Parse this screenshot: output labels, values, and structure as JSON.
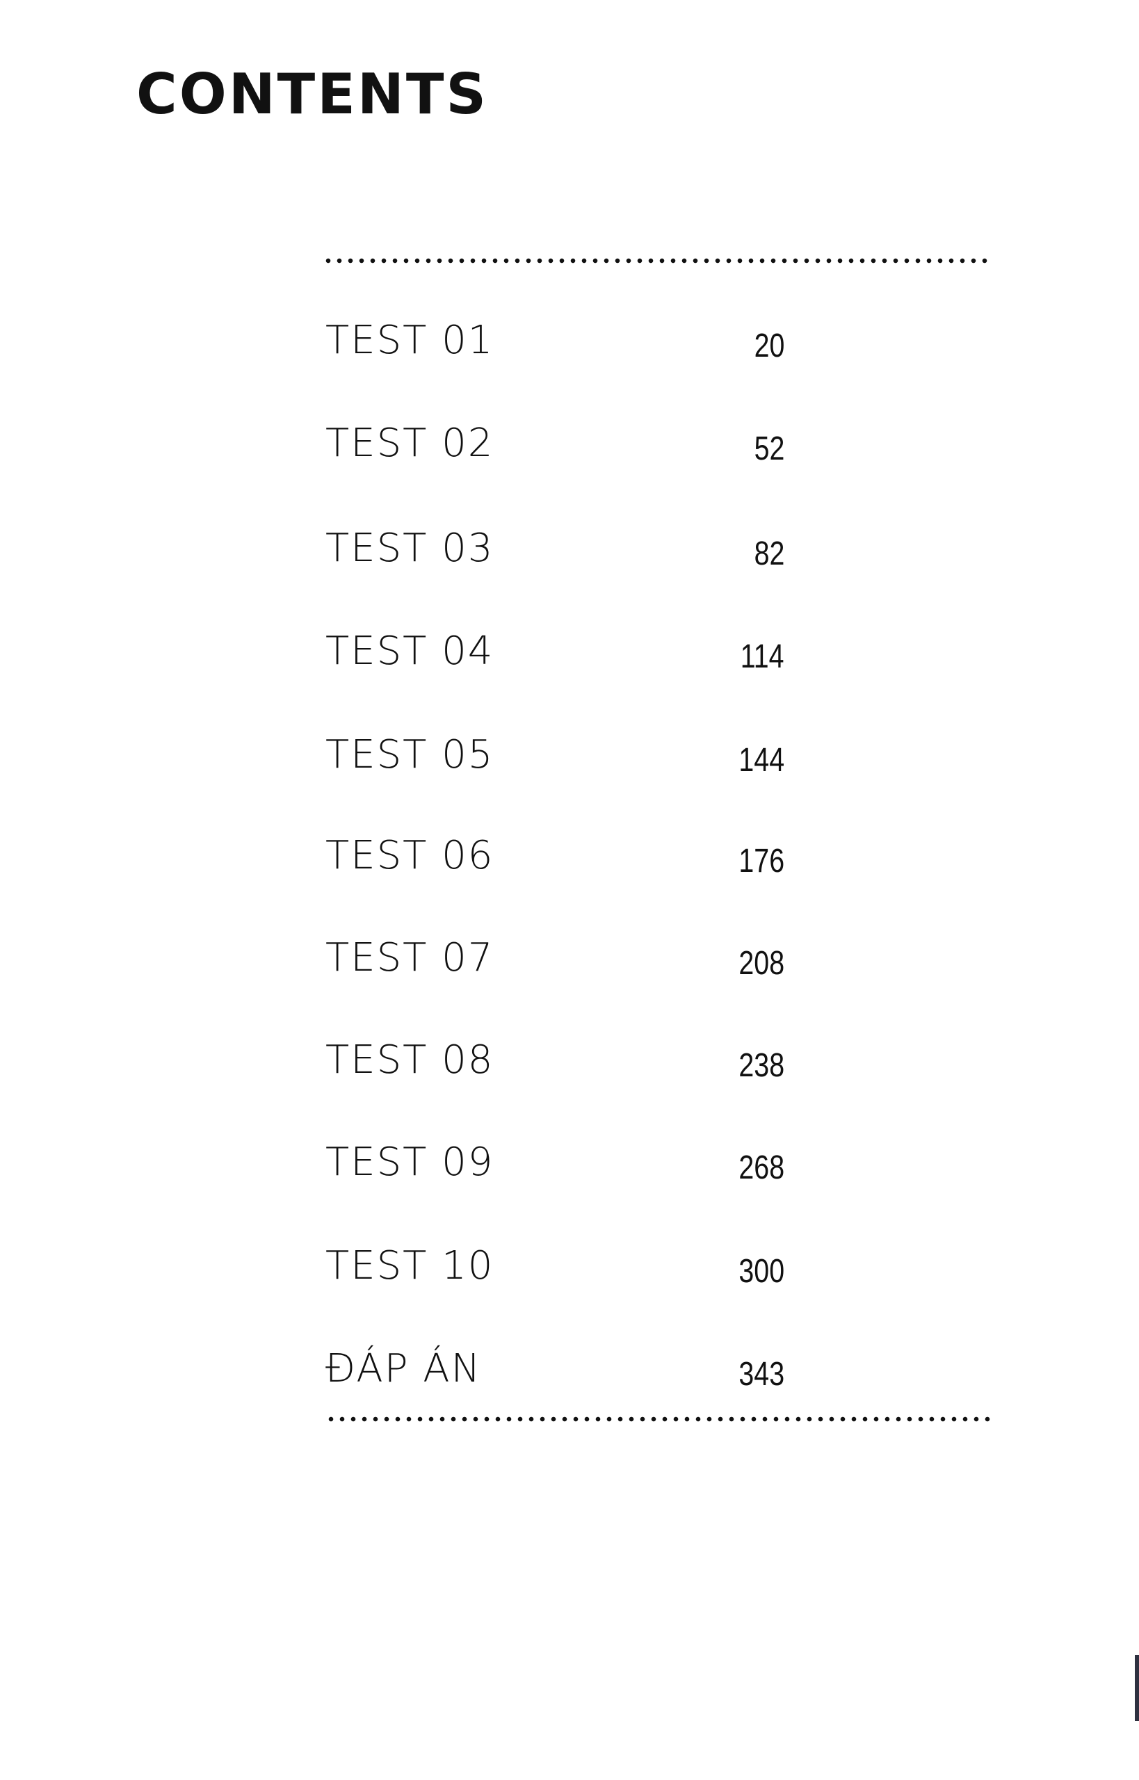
{
  "title": "CONTENTS",
  "entries": [
    {
      "label": "TEST 01",
      "page": "20"
    },
    {
      "label": "TEST 02",
      "page": "52"
    },
    {
      "label": "TEST 03",
      "page": "82"
    },
    {
      "label": "TEST 04",
      "page": "114"
    },
    {
      "label": "TEST 05",
      "page": "144"
    },
    {
      "label": "TEST 06",
      "page": "176"
    },
    {
      "label": "TEST 07",
      "page": "208"
    },
    {
      "label": "TEST 08",
      "page": "238"
    },
    {
      "label": "TEST 09",
      "page": "268"
    },
    {
      "label": "TEST 10",
      "page": "300"
    },
    {
      "label": "ĐÁP ÁN",
      "page": "343"
    }
  ]
}
